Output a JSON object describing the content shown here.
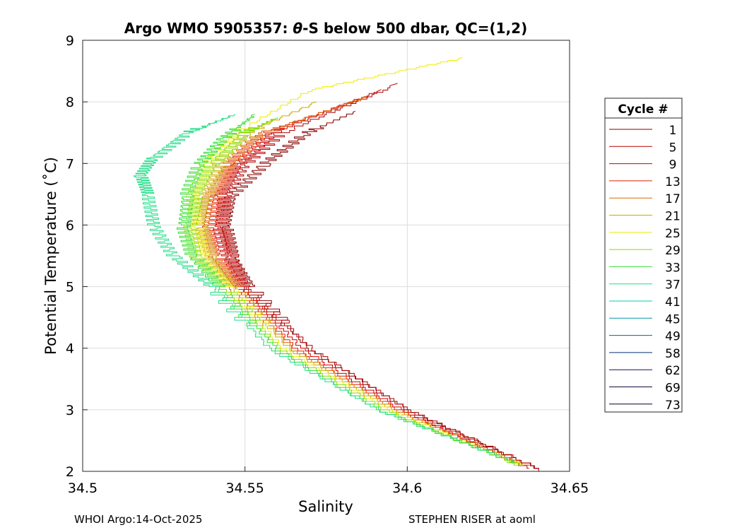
{
  "chart_data": {
    "type": "line",
    "title_prefix": "Argo WMO 5905357: ",
    "title_theta": "θ",
    "title_suffix": "-S below 500 dbar,  QC=(1,2)",
    "xlabel": "Salinity",
    "ylabel": "Potential Temperature (˚C)",
    "xlim": [
      34.5,
      34.65
    ],
    "ylim": [
      2,
      9
    ],
    "xticks": [
      34.5,
      34.55,
      34.6,
      34.65
    ],
    "xtick_labels": [
      "34.5",
      "34.55",
      "34.6",
      "34.65"
    ],
    "yticks": [
      2,
      3,
      4,
      5,
      6,
      7,
      8,
      9
    ],
    "ytick_labels": [
      "2",
      "3",
      "4",
      "5",
      "6",
      "7",
      "8",
      "9"
    ],
    "grid": true,
    "legend_title": "Cycle #",
    "legend_position": "right-outside",
    "series": [
      {
        "name": "1",
        "color": "#8b0000",
        "theta": [
          2.0,
          3.0,
          4.0,
          5.0,
          5.5,
          6.0,
          6.5,
          7.0,
          7.5,
          7.85
        ],
        "salinity": [
          34.643,
          34.601,
          34.57,
          34.552,
          34.546,
          34.544,
          34.546,
          34.556,
          34.569,
          34.584
        ]
      },
      {
        "name": "5",
        "color": "#b00000",
        "theta": [
          2.05,
          3.0,
          4.0,
          5.0,
          5.5,
          6.0,
          6.5,
          7.0,
          7.5,
          8.3
        ],
        "salinity": [
          34.641,
          34.601,
          34.571,
          34.55,
          34.546,
          34.543,
          34.544,
          34.55,
          34.561,
          34.597
        ]
      },
      {
        "name": "9",
        "color": "#cc0000",
        "theta": [
          2.05,
          3.0,
          4.0,
          5.0,
          5.5,
          6.0,
          6.5,
          7.0,
          7.5,
          8.2
        ],
        "salinity": [
          34.638,
          34.599,
          34.568,
          34.549,
          34.545,
          34.542,
          34.543,
          34.548,
          34.558,
          34.592
        ]
      },
      {
        "name": "13",
        "color": "#dd2200",
        "theta": [
          2.1,
          3.0,
          4.0,
          5.0,
          5.5,
          6.0,
          6.5,
          7.0,
          7.5,
          8.05
        ],
        "salinity": [
          34.637,
          34.598,
          34.566,
          34.548,
          34.541,
          34.539,
          34.541,
          34.546,
          34.556,
          34.585
        ]
      },
      {
        "name": "17",
        "color": "#dd6600",
        "theta": [
          2.1,
          3.0,
          4.0,
          5.0,
          5.5,
          6.0,
          6.5,
          7.0,
          7.5,
          8.1
        ],
        "salinity": [
          34.637,
          34.597,
          34.565,
          34.547,
          34.54,
          34.537,
          34.539,
          34.545,
          34.555,
          34.588
        ]
      },
      {
        "name": "21",
        "color": "#ccaa00",
        "theta": [
          2.1,
          3.0,
          4.0,
          5.0,
          5.5,
          6.0,
          6.5,
          7.0,
          7.5,
          8.0
        ],
        "salinity": [
          34.636,
          34.596,
          34.564,
          34.546,
          34.539,
          34.536,
          34.538,
          34.542,
          34.55,
          34.572
        ]
      },
      {
        "name": "25",
        "color": "#eeee00",
        "theta": [
          2.1,
          3.0,
          4.0,
          5.0,
          5.5,
          6.0,
          6.5,
          7.0,
          7.5,
          8.2,
          8.72
        ],
        "salinity": [
          34.636,
          34.595,
          34.562,
          34.545,
          34.537,
          34.535,
          34.534,
          34.538,
          34.547,
          34.57,
          34.617
        ]
      },
      {
        "name": "29",
        "color": "#88dd00",
        "theta": [
          2.1,
          3.0,
          4.0,
          5.0,
          5.5,
          6.0,
          6.5,
          7.0,
          7.5,
          7.75
        ],
        "salinity": [
          34.635,
          34.594,
          34.561,
          34.544,
          34.535,
          34.533,
          34.535,
          34.54,
          34.55,
          34.56
        ]
      },
      {
        "name": "33",
        "color": "#33dd33",
        "theta": [
          2.15,
          3.0,
          4.0,
          5.0,
          5.5,
          6.0,
          6.5,
          7.0,
          7.4,
          7.8
        ],
        "salinity": [
          34.634,
          34.592,
          34.56,
          34.542,
          34.534,
          34.531,
          34.532,
          34.536,
          34.543,
          34.553
        ]
      },
      {
        "name": "37",
        "color": "#22dd88",
        "theta": [
          2.15,
          3.0,
          4.0,
          5.0,
          5.5,
          6.0,
          6.5,
          6.8,
          7.1,
          7.5,
          7.8
        ],
        "salinity": [
          34.634,
          34.592,
          34.558,
          34.54,
          34.528,
          34.522,
          34.52,
          34.518,
          34.522,
          34.532,
          34.547
        ]
      },
      {
        "name": "41",
        "color": "#00ccbb",
        "theta": [],
        "salinity": []
      },
      {
        "name": "45",
        "color": "#0099aa",
        "theta": [],
        "salinity": []
      },
      {
        "name": "49",
        "color": "#006688",
        "theta": [],
        "salinity": []
      },
      {
        "name": "58",
        "color": "#003377",
        "theta": [],
        "salinity": []
      },
      {
        "name": "62",
        "color": "#111166",
        "theta": [],
        "salinity": []
      },
      {
        "name": "69",
        "color": "#0b0b44",
        "theta": [],
        "salinity": []
      },
      {
        "name": "73",
        "color": "#050522",
        "theta": [],
        "salinity": []
      }
    ]
  },
  "footer": {
    "left": "WHOI Argo:14-Oct-2025",
    "right": "STEPHEN RISER at aoml"
  }
}
